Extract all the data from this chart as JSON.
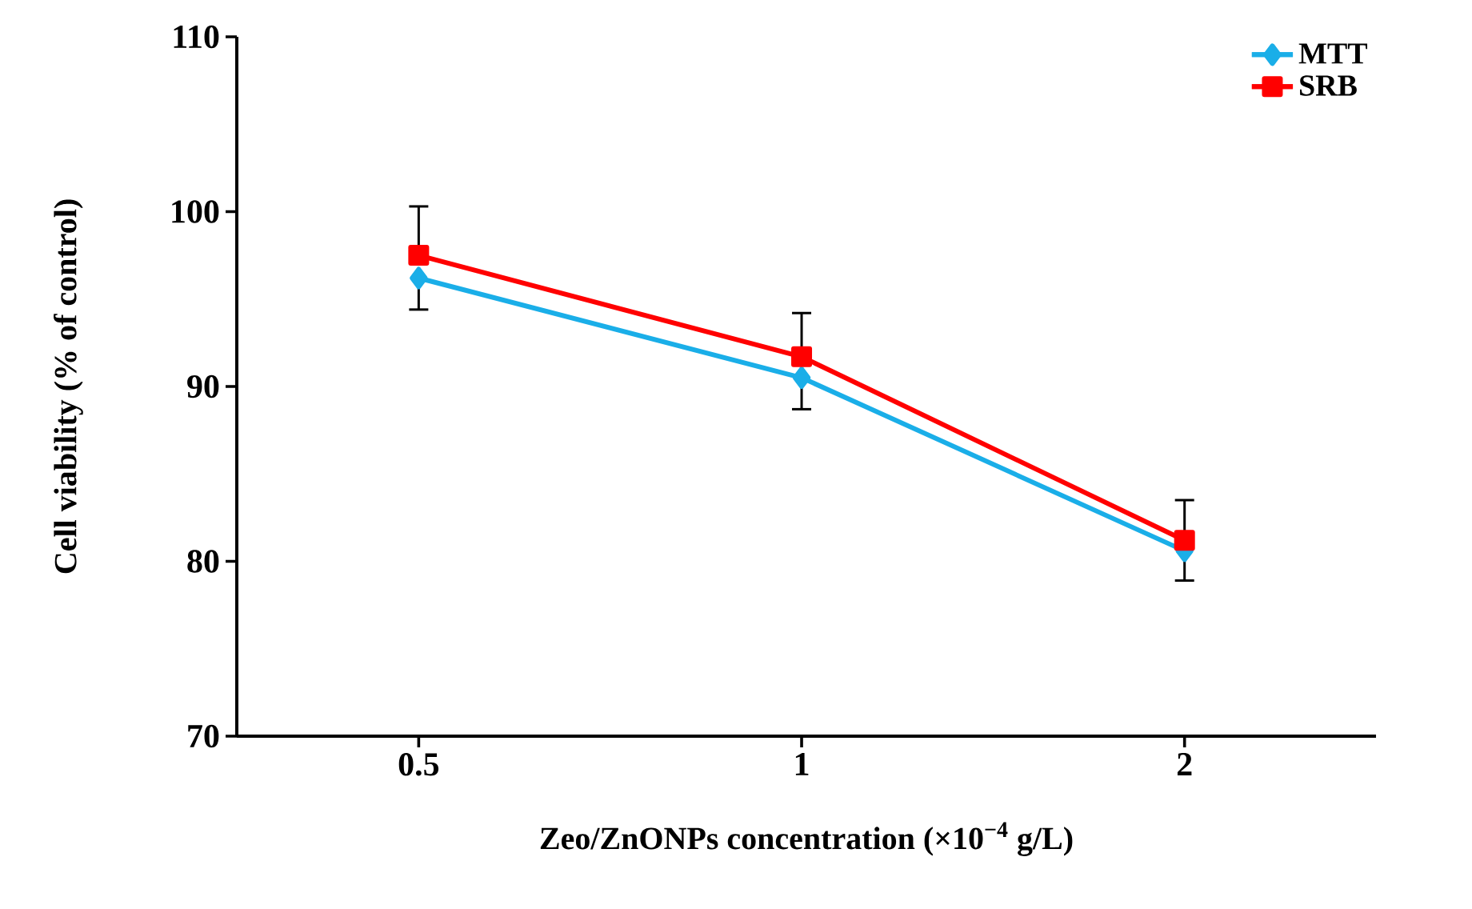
{
  "chart_data": {
    "type": "line",
    "xlabel": "Zeo/ZnONPs concentration (×10$^{−4}$ g/L)",
    "ylabel": "Cell viability (% of control)",
    "categories": [
      "0.5",
      "1",
      "2"
    ],
    "series": [
      {
        "name": "MTT",
        "color": "#1aaee8",
        "marker": "diamond",
        "values": [
          96.2,
          90.5,
          80.6
        ],
        "errors": [
          [
            94.4,
            96.2
          ],
          [
            88.7,
            90.5
          ],
          [
            78.9,
            80.6
          ]
        ]
      },
      {
        "name": "SRB",
        "color": "#ff0000",
        "marker": "square",
        "values": [
          97.5,
          91.7,
          81.2
        ],
        "errors": [
          [
            97.5,
            100.3
          ],
          [
            91.7,
            94.2
          ],
          [
            81.2,
            83.5
          ]
        ]
      }
    ],
    "ylim": [
      70,
      110
    ],
    "yticks": [
      70,
      80,
      90,
      100,
      110
    ],
    "grid": false,
    "legend": "top right",
    "line_style": "solid"
  }
}
